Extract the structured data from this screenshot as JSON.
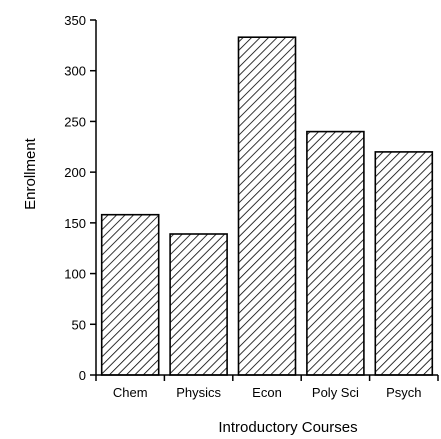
{
  "chart_data": {
    "type": "bar",
    "categories": [
      "Chem",
      "Physics",
      "Econ",
      "Poly Sci",
      "Psych"
    ],
    "values": [
      158,
      139,
      333,
      240,
      220
    ],
    "xlabel": "Introductory Courses",
    "ylabel": "Enrollment",
    "ylim": [
      0,
      350
    ],
    "yticks": [
      0,
      50,
      100,
      150,
      200,
      250,
      300,
      350
    ],
    "grid": false,
    "legend": "none",
    "bar_fill": "diagonal-hatch",
    "bar_color": "#000000"
  }
}
